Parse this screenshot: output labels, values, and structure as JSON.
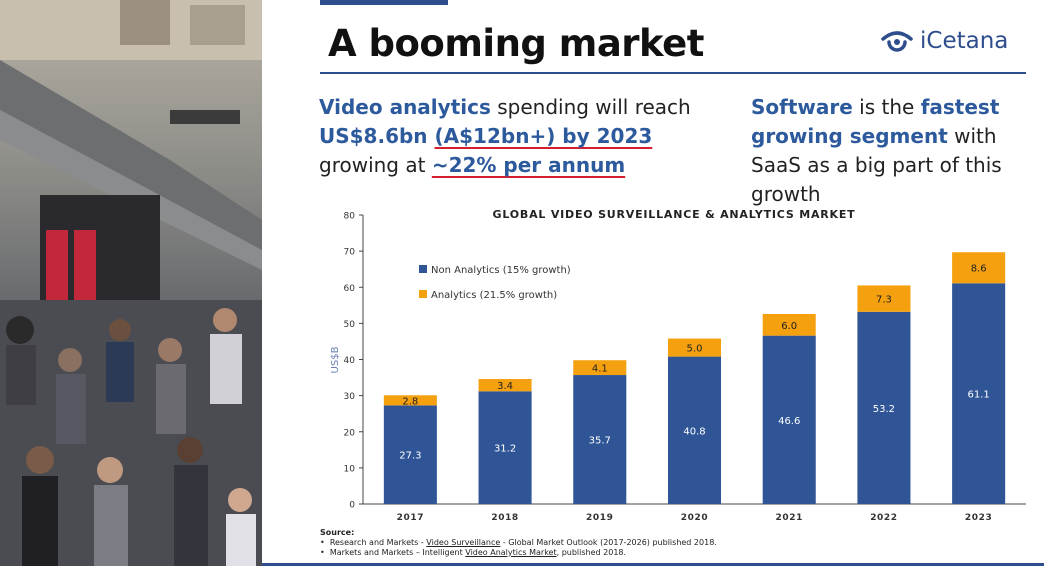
{
  "title": "A booming market",
  "logo": {
    "text": "iCetana",
    "icon": "eye-logo-icon",
    "color": "#2d4d8c"
  },
  "blurb_left": {
    "hl1": "Video analytics",
    "t1": " spending will reach ",
    "hl2": "US$8.6bn ",
    "ul1": "(A$12bn+) by 2023",
    "t2": "growing at ",
    "ul2": "~22% per annum"
  },
  "blurb_right": {
    "hl1": "Software",
    "t1": " is the ",
    "hl2": "fastest growing segment",
    "t2": " with SaaS as a big part of this growth"
  },
  "chart_data": {
    "type": "bar",
    "stacked": true,
    "title": "GLOBAL VIDEO SURVEILLANCE & ANALYTICS MARKET",
    "xlabel": "",
    "ylabel": "US$B",
    "ylim": [
      0,
      80
    ],
    "yticks": [
      0,
      10,
      20,
      30,
      40,
      50,
      60,
      70,
      80
    ],
    "categories": [
      "2017",
      "2018",
      "2019",
      "2020",
      "2021",
      "2022",
      "2023"
    ],
    "series": [
      {
        "name": "Non Analytics (15% growth)",
        "color": "#2f5597",
        "label_color": "#ffffff",
        "values": [
          27.3,
          31.2,
          35.7,
          40.8,
          46.6,
          53.2,
          61.1
        ]
      },
      {
        "name": "Analytics (21.5% growth)",
        "color": "#f5a00f",
        "label_color": "#222222",
        "values": [
          2.8,
          3.4,
          4.1,
          5.0,
          6.0,
          7.3,
          8.6
        ]
      }
    ],
    "value_labels": {
      "Non Analytics (15% growth)": [
        "27.3",
        "31.2",
        "35.7",
        "40.8",
        "46.6",
        "53.2",
        "61.1"
      ],
      "Analytics (21.5% growth)": [
        "2.8",
        "3.4",
        "4.1",
        "5.0",
        "6.0",
        "7.3",
        "8.6"
      ]
    },
    "legend_position": "top-left",
    "grid": false
  },
  "source": {
    "heading": "Source:",
    "line1_pre": "Research and Markets - ",
    "line1_link": "Video Surveillance",
    "line1_post": " - Global Market Outlook (2017-2026) published 2018.",
    "line2_pre": "Markets and Markets – Intelligent ",
    "line2_link": "Video Analytics Market",
    "line2_post": ", published 2018."
  }
}
